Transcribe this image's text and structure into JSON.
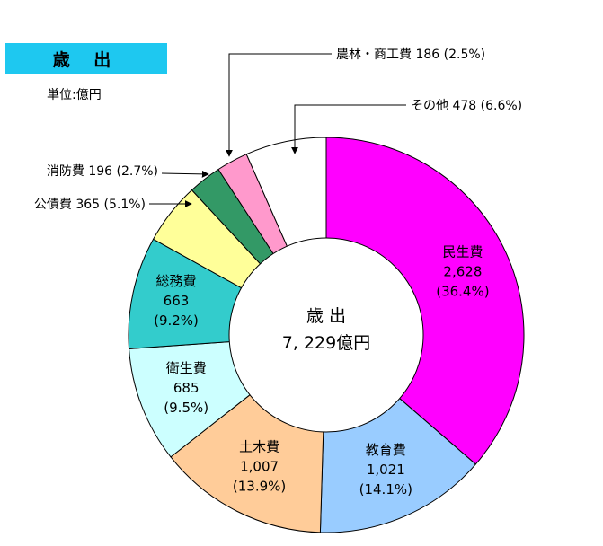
{
  "header": {
    "title": "歳 出",
    "unit": "単位:億円"
  },
  "center": {
    "line1": "歳 出",
    "line2": "7, 229億円"
  },
  "chart_data": {
    "type": "pie",
    "title": "歳 出",
    "total": 7229,
    "unit": "億円",
    "slices": [
      {
        "name": "民生費",
        "value": 2628,
        "value_label": "2,628",
        "pct": 36.4,
        "pct_label": "(36.4%)",
        "color": "#ff00ff"
      },
      {
        "name": "教育費",
        "value": 1021,
        "value_label": "1,021",
        "pct": 14.1,
        "pct_label": "(14.1%)",
        "color": "#99ccff"
      },
      {
        "name": "土木費",
        "value": 1007,
        "value_label": "1,007",
        "pct": 13.9,
        "pct_label": "(13.9%)",
        "color": "#ffcc99"
      },
      {
        "name": "衛生費",
        "value": 685,
        "value_label": "685",
        "pct": 9.5,
        "pct_label": "(9.5%)",
        "color": "#ccffff"
      },
      {
        "name": "総務費",
        "value": 663,
        "value_label": "663",
        "pct": 9.2,
        "pct_label": "(9.2%)",
        "color": "#33cccc"
      },
      {
        "name": "公債費",
        "value": 365,
        "value_label": "365",
        "pct": 5.1,
        "pct_label": "(5.1%)",
        "color": "#ffff99"
      },
      {
        "name": "消防費",
        "value": 196,
        "value_label": "196",
        "pct": 2.7,
        "pct_label": "(2.7%)",
        "color": "#339966"
      },
      {
        "name": "農林・商工費",
        "value": 186,
        "value_label": "186",
        "pct": 2.5,
        "pct_label": "(2.5%)",
        "color": "#ff99cc"
      },
      {
        "name": "その他",
        "value": 478,
        "value_label": "478",
        "pct": 6.6,
        "pct_label": "(6.6%)",
        "color": "#ffffff"
      }
    ]
  }
}
